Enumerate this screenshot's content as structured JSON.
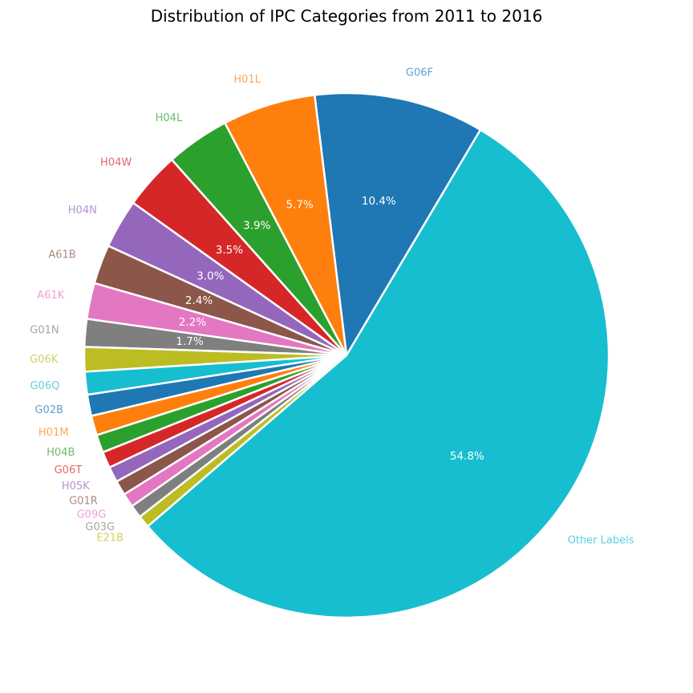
{
  "chart_data": {
    "type": "pie",
    "title": "Distribution of IPC Categories from 2011 to 2016",
    "slices": [
      {
        "label": "G06F",
        "value": 10.4,
        "pct_label": "10.4%",
        "color": "#1f77b4"
      },
      {
        "label": "H01L",
        "value": 5.7,
        "pct_label": "5.7%",
        "color": "#ff7f0e"
      },
      {
        "label": "H04L",
        "value": 3.9,
        "pct_label": "3.9%",
        "color": "#2ca02c"
      },
      {
        "label": "H04W",
        "value": 3.5,
        "pct_label": "3.5%",
        "color": "#d62728"
      },
      {
        "label": "H04N",
        "value": 3.0,
        "pct_label": "3.0%",
        "color": "#9467bd"
      },
      {
        "label": "A61B",
        "value": 2.4,
        "pct_label": "2.4%",
        "color": "#8c564b"
      },
      {
        "label": "A61K",
        "value": 2.2,
        "pct_label": "2.2%",
        "color": "#e377c2"
      },
      {
        "label": "G01N",
        "value": 1.7,
        "pct_label": "1.7%",
        "color": "#7f7f7f"
      },
      {
        "label": "G06K",
        "value": 1.5,
        "pct_label": "",
        "color": "#bcbd22"
      },
      {
        "label": "G06Q",
        "value": 1.4,
        "pct_label": "",
        "color": "#17becf"
      },
      {
        "label": "G02B",
        "value": 1.3,
        "pct_label": "",
        "color": "#1f77b4"
      },
      {
        "label": "H01M",
        "value": 1.2,
        "pct_label": "",
        "color": "#ff7f0e"
      },
      {
        "label": "H04B",
        "value": 1.1,
        "pct_label": "",
        "color": "#2ca02c"
      },
      {
        "label": "G06T",
        "value": 1.0,
        "pct_label": "",
        "color": "#d62728"
      },
      {
        "label": "H05K",
        "value": 0.95,
        "pct_label": "",
        "color": "#9467bd"
      },
      {
        "label": "G01R",
        "value": 0.9,
        "pct_label": "",
        "color": "#8c564b"
      },
      {
        "label": "G09G",
        "value": 0.85,
        "pct_label": "",
        "color": "#e377c2"
      },
      {
        "label": "G03G",
        "value": 0.8,
        "pct_label": "",
        "color": "#7f7f7f"
      },
      {
        "label": "E21B",
        "value": 0.75,
        "pct_label": "",
        "color": "#bcbd22"
      },
      {
        "label": "Other Labels",
        "value": 54.8,
        "pct_label": "54.8%",
        "color": "#17becf"
      }
    ],
    "legend": "none"
  }
}
